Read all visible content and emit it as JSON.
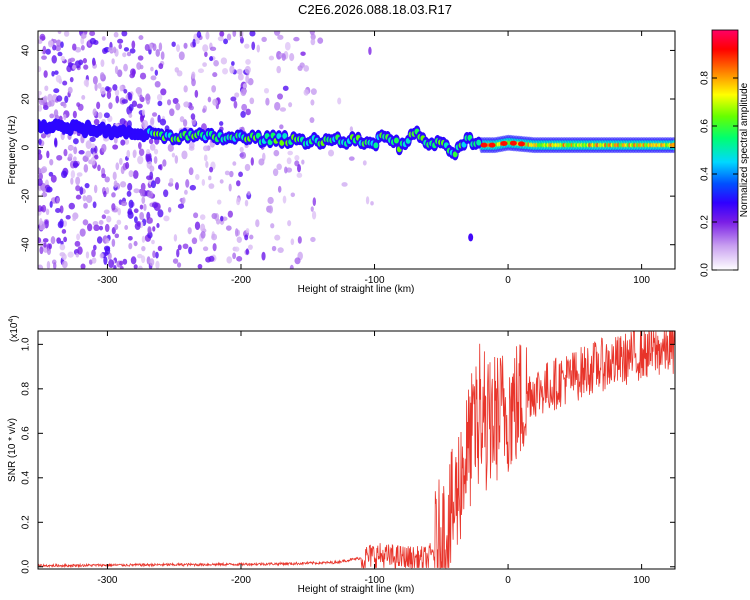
{
  "title": "C2E6.2026.088.18.03.R17",
  "chart_data": [
    {
      "type": "heatmap",
      "title": "C2E6.2026.088.18.03.R17",
      "xlabel": "Height of straight line (km)",
      "ylabel": "Frequency (Hz)",
      "xlim": [
        -352,
        125
      ],
      "ylim": [
        -50,
        48
      ],
      "xticks": [
        "-300",
        "-200",
        "-100",
        "0",
        "100"
      ],
      "yticks": [
        "-40",
        "-20",
        "0",
        "20",
        "40"
      ],
      "colorbar": {
        "label": "Normalized spectral amplitude",
        "range": [
          0.0,
          1.0
        ],
        "ticks": [
          "0.0",
          "0.2",
          "0.4",
          "0.6",
          "0.8"
        ],
        "colormap": [
          "#f4e8fb",
          "#c9a0f0",
          "#7a1ee6",
          "#3000ff",
          "#0050ff",
          "#00d8ff",
          "#00ff70",
          "#66ff00",
          "#ffff00",
          "#ff8800",
          "#ff0000",
          "#ff0066"
        ]
      },
      "ridge_frequency": {
        "x": [
          -352,
          -300,
          -260,
          -200,
          -150,
          -120,
          -100,
          -90,
          -80,
          -70,
          -60,
          -50,
          -40,
          -30,
          -20,
          -10,
          0,
          20,
          50,
          100,
          125
        ],
        "y": [
          9,
          7,
          5,
          4,
          3,
          3,
          2,
          5,
          0,
          6,
          2,
          1,
          -2,
          3,
          1,
          1,
          2,
          1,
          1,
          1,
          1
        ]
      }
    },
    {
      "type": "line",
      "xlabel": "Height of straight line (km)",
      "ylabel": "SNR (10 * v/v)",
      "scale_label": "(x10",
      "scale_exponent": "4",
      "xlim": [
        -352,
        125
      ],
      "ylim": [
        -0.01,
        1.06
      ],
      "xticks": [
        "-300",
        "-200",
        "-100",
        "0",
        "100"
      ],
      "yticks": [
        "0.0",
        "0.2",
        "0.4",
        "0.6",
        "0.8",
        "1.0"
      ],
      "series": [
        {
          "name": "SNR",
          "color": "#e8342a",
          "x": [
            -352,
            -300,
            -250,
            -200,
            -160,
            -130,
            -110,
            -100,
            -90,
            -80,
            -70,
            -60,
            -55,
            -50,
            -45,
            -40,
            -35,
            -30,
            -25,
            -20,
            -15,
            -10,
            -5,
            0,
            5,
            10,
            15,
            20,
            30,
            40,
            50,
            60,
            70,
            80,
            90,
            100,
            110,
            125
          ],
          "y": [
            0.005,
            0.008,
            0.01,
            0.012,
            0.015,
            0.02,
            0.04,
            0.06,
            0.05,
            0.045,
            0.04,
            0.04,
            0.08,
            0.15,
            0.2,
            0.3,
            0.45,
            0.55,
            0.65,
            0.62,
            0.66,
            0.7,
            0.72,
            0.74,
            0.75,
            0.78,
            0.8,
            0.8,
            0.82,
            0.85,
            0.87,
            0.9,
            0.92,
            0.93,
            0.95,
            0.97,
            0.98,
            1.0
          ]
        }
      ]
    }
  ]
}
